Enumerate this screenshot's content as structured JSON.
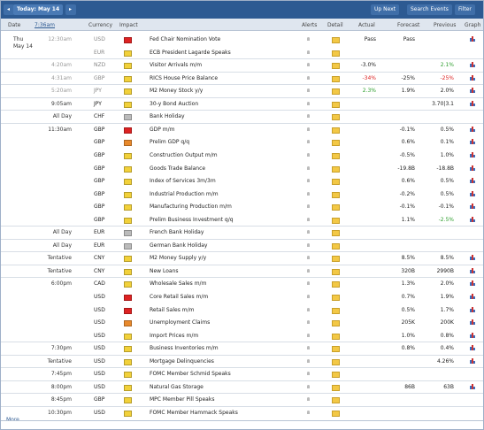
{
  "header": {
    "today": "Today: May 14",
    "up_next": "Up Next",
    "search": "Search Events",
    "filter": "Filter"
  },
  "columns": {
    "date": "Date",
    "time": "7:36am",
    "currency": "Currency",
    "impact": "Impact",
    "alerts": "Alerts",
    "detail": "Detail",
    "actual": "Actual",
    "forecast": "Forecast",
    "previous": "Previous",
    "graph": "Graph"
  },
  "impact_colors": {
    "high": "#d22",
    "medium": "#e8892c",
    "low": "#f2d13a",
    "holiday": "#bbb"
  },
  "tone_colors": {
    "better": "#2e9e2e",
    "worse": "#d22"
  },
  "rows": [
    {
      "date": [
        "Thu",
        "May 14"
      ],
      "time": "12:30am",
      "currency": "USD",
      "impact": "high",
      "event": "Fed Chair Nomination Vote",
      "actual": "Pass",
      "forecast": "Pass",
      "past": true
    },
    {
      "currency": "EUR",
      "impact": "low",
      "event": "ECB President Lagarde Speaks",
      "past": true
    },
    {
      "time": "4:20am",
      "currency": "NZD",
      "impact": "low",
      "event": "Visitor Arrivals m/m",
      "actual": "-3.0%",
      "previous": "2.1%",
      "previous_tone": "better",
      "past": true
    },
    {
      "time": "4:31am",
      "currency": "GBP",
      "impact": "low",
      "event": "RICS House Price Balance",
      "actual": "-34%",
      "actual_tone": "worse",
      "forecast": "-25%",
      "previous": "-25%",
      "previous_tone": "worse",
      "past": true
    },
    {
      "time": "5:20am",
      "currency": "JPY",
      "impact": "low",
      "event": "M2 Money Stock y/y",
      "actual": "2.3%",
      "actual_tone": "better",
      "forecast": "1.9%",
      "previous": "2.0%",
      "past": true
    },
    {
      "time": "9:05am",
      "currency": "JPY",
      "impact": "low",
      "event": "30-y Bond Auction",
      "previous": "3.70|3.1"
    },
    {
      "time": "All Day",
      "currency": "CHF",
      "impact": "holiday",
      "event": "Bank Holiday"
    },
    {
      "time": "11:30am",
      "currency": "GBP",
      "impact": "high",
      "event": "GDP m/m",
      "forecast": "-0.1%",
      "previous": "0.5%"
    },
    {
      "currency": "GBP",
      "impact": "medium",
      "event": "Prelim GDP q/q",
      "forecast": "0.6%",
      "previous": "0.1%"
    },
    {
      "currency": "GBP",
      "impact": "low",
      "event": "Construction Output m/m",
      "forecast": "-0.5%",
      "previous": "1.0%"
    },
    {
      "currency": "GBP",
      "impact": "low",
      "event": "Goods Trade Balance",
      "forecast": "-19.8B",
      "previous": "-18.8B"
    },
    {
      "currency": "GBP",
      "impact": "low",
      "event": "Index of Services 3m/3m",
      "forecast": "0.6%",
      "previous": "0.5%"
    },
    {
      "currency": "GBP",
      "impact": "low",
      "event": "Industrial Production m/m",
      "forecast": "-0.2%",
      "previous": "0.5%"
    },
    {
      "currency": "GBP",
      "impact": "low",
      "event": "Manufacturing Production m/m",
      "forecast": "-0.1%",
      "previous": "-0.1%"
    },
    {
      "currency": "GBP",
      "impact": "low",
      "event": "Prelim Business Investment q/q",
      "forecast": "1.1%",
      "previous": "-2.5%",
      "previous_tone": "better"
    },
    {
      "time": "All Day",
      "currency": "EUR",
      "impact": "holiday",
      "event": "French Bank Holiday"
    },
    {
      "time": "All Day",
      "currency": "EUR",
      "impact": "holiday",
      "event": "German Bank Holiday"
    },
    {
      "time": "Tentative",
      "currency": "CNY",
      "impact": "low",
      "event": "M2 Money Supply y/y",
      "forecast": "8.5%",
      "previous": "8.5%"
    },
    {
      "time": "Tentative",
      "currency": "CNY",
      "impact": "low",
      "event": "New Loans",
      "forecast": "320B",
      "previous": "2990B"
    },
    {
      "time": "6:00pm",
      "currency": "CAD",
      "impact": "low",
      "event": "Wholesale Sales m/m",
      "forecast": "1.3%",
      "previous": "2.0%"
    },
    {
      "currency": "USD",
      "impact": "high",
      "event": "Core Retail Sales m/m",
      "forecast": "0.7%",
      "previous": "1.9%"
    },
    {
      "currency": "USD",
      "impact": "high",
      "event": "Retail Sales m/m",
      "forecast": "0.5%",
      "previous": "1.7%"
    },
    {
      "currency": "USD",
      "impact": "medium",
      "event": "Unemployment Claims",
      "forecast": "205K",
      "previous": "200K"
    },
    {
      "currency": "USD",
      "impact": "low",
      "event": "Import Prices m/m",
      "forecast": "1.0%",
      "previous": "0.8%"
    },
    {
      "time": "7:30pm",
      "currency": "USD",
      "impact": "low",
      "event": "Business Inventories m/m",
      "forecast": "0.8%",
      "previous": "0.4%"
    },
    {
      "time": "Tentative",
      "currency": "USD",
      "impact": "low",
      "event": "Mortgage Delinquencies",
      "previous": "4.26%"
    },
    {
      "time": "7:45pm",
      "currency": "USD",
      "impact": "low",
      "event": "FOMC Member Schmid Speaks"
    },
    {
      "time": "8:00pm",
      "currency": "USD",
      "impact": "low",
      "event": "Natural Gas Storage",
      "forecast": "86B",
      "previous": "63B"
    },
    {
      "time": "8:45pm",
      "currency": "GBP",
      "impact": "low",
      "event": "MPC Member Pill Speaks"
    },
    {
      "time": "10:30pm",
      "currency": "USD",
      "impact": "low",
      "event": "FOMC Member Hammack Speaks"
    }
  ],
  "footer": {
    "more": "More"
  }
}
